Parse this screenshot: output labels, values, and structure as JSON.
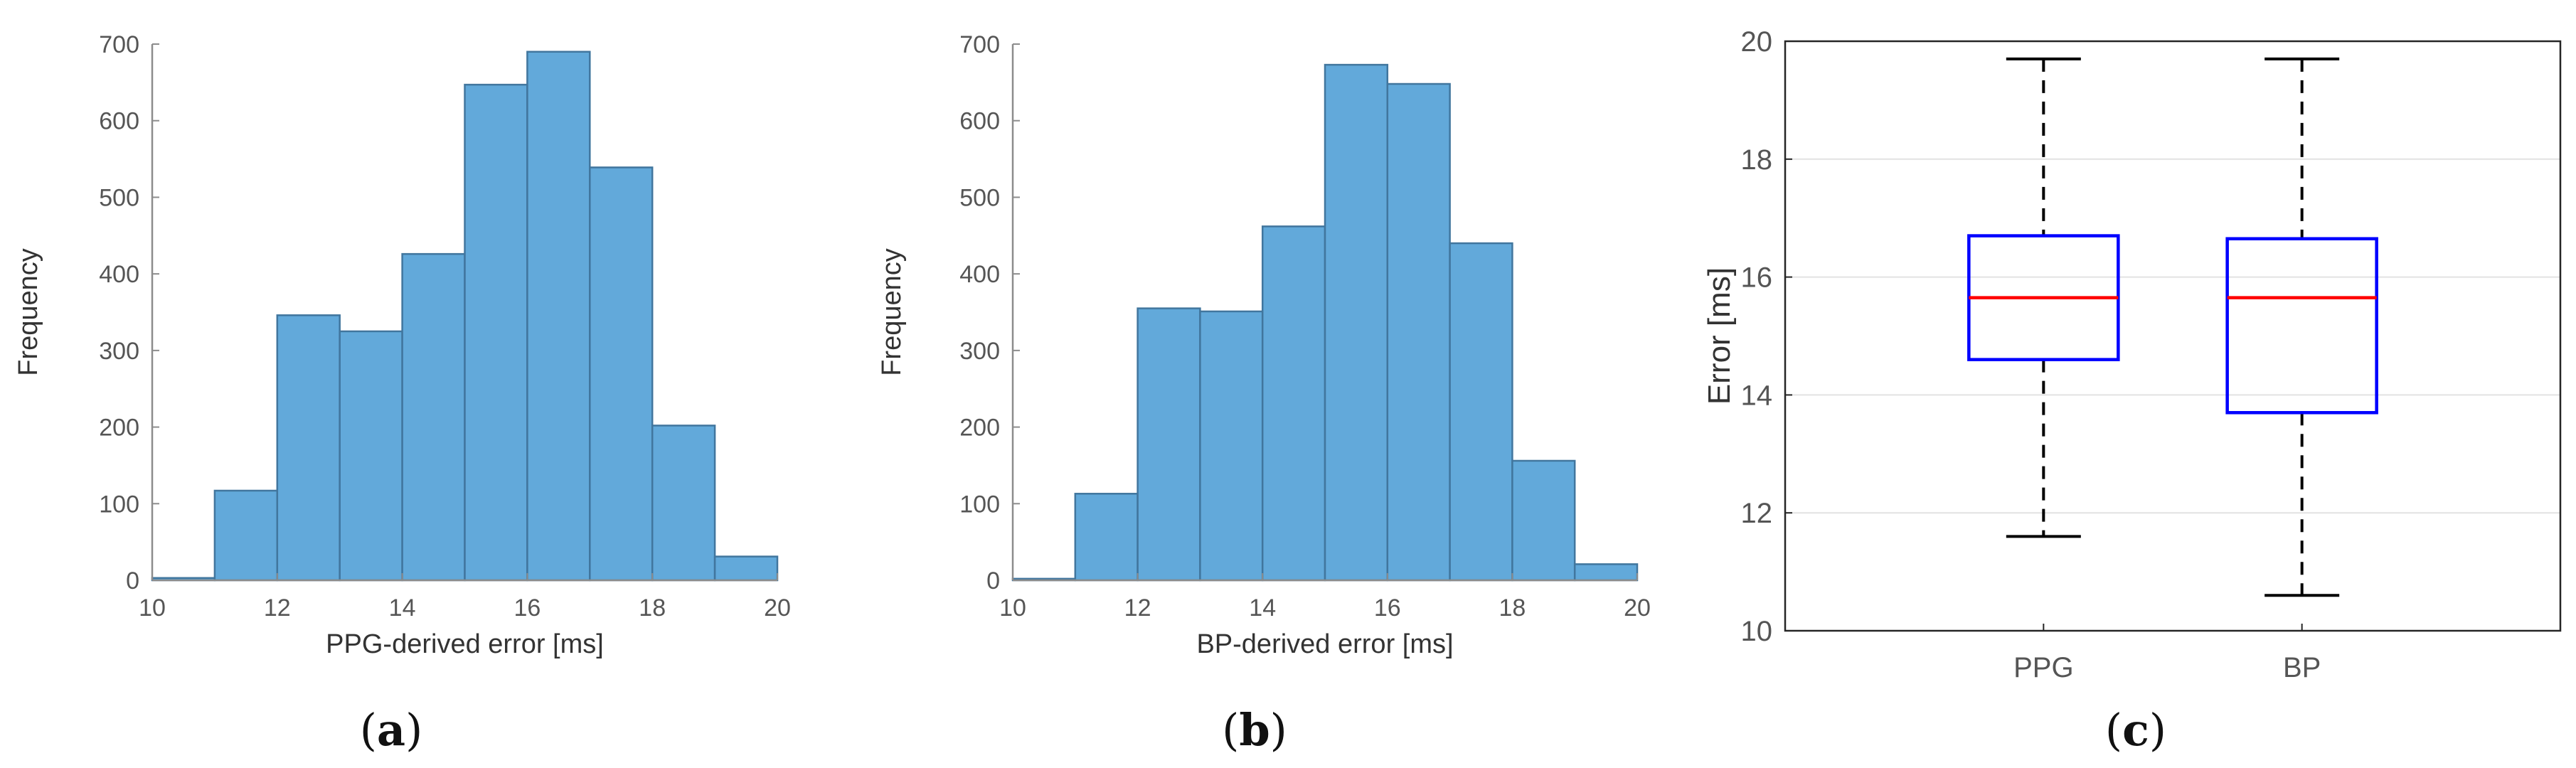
{
  "panels": [
    {
      "letter": "a"
    },
    {
      "letter": "b"
    },
    {
      "letter": "c"
    }
  ],
  "chart_data": [
    {
      "type": "bar",
      "subtype": "histogram",
      "xlabel": "PPG-derived error [ms]",
      "ylabel": "Frequency",
      "xlim": [
        10,
        20
      ],
      "ylim": [
        0,
        700
      ],
      "xticks": [
        10,
        12,
        14,
        16,
        18,
        20
      ],
      "yticks": [
        0,
        100,
        200,
        300,
        400,
        500,
        600,
        700
      ],
      "bin_edges": [
        10,
        11,
        12,
        13,
        14,
        15,
        16,
        17,
        18,
        19,
        20
      ],
      "values": [
        3,
        117,
        346,
        325,
        426,
        647,
        690,
        539,
        202,
        31
      ],
      "bar_color": "#62a9da",
      "edge_color": "#41769e",
      "grid": false
    },
    {
      "type": "bar",
      "subtype": "histogram",
      "xlabel": "BP-derived error [ms]",
      "ylabel": "Frequency",
      "xlim": [
        10,
        20
      ],
      "ylim": [
        0,
        700
      ],
      "xticks": [
        10,
        12,
        14,
        16,
        18,
        20
      ],
      "yticks": [
        0,
        100,
        200,
        300,
        400,
        500,
        600,
        700
      ],
      "bin_edges": [
        10,
        11,
        12,
        13,
        14,
        15,
        16,
        17,
        18,
        19,
        20
      ],
      "values": [
        2,
        113,
        355,
        351,
        462,
        673,
        648,
        440,
        156,
        21
      ],
      "bar_color": "#62a9da",
      "edge_color": "#41769e",
      "grid": false
    },
    {
      "type": "box",
      "ylabel": "Error [ms]",
      "ylim": [
        10,
        20
      ],
      "yticks": [
        10,
        12,
        14,
        16,
        18,
        20
      ],
      "categories": [
        "PPG",
        "BP"
      ],
      "boxes": [
        {
          "category": "PPG",
          "whisker_low": 11.6,
          "q1": 14.6,
          "median": 15.65,
          "q3": 16.7,
          "whisker_high": 19.7
        },
        {
          "category": "BP",
          "whisker_low": 10.6,
          "q1": 13.7,
          "median": 15.65,
          "q3": 16.65,
          "whisker_high": 19.7
        }
      ],
      "box_color": "#0000ff",
      "median_color": "#ff0000",
      "whisker_color": "#000000",
      "grid": "horizontal"
    }
  ]
}
